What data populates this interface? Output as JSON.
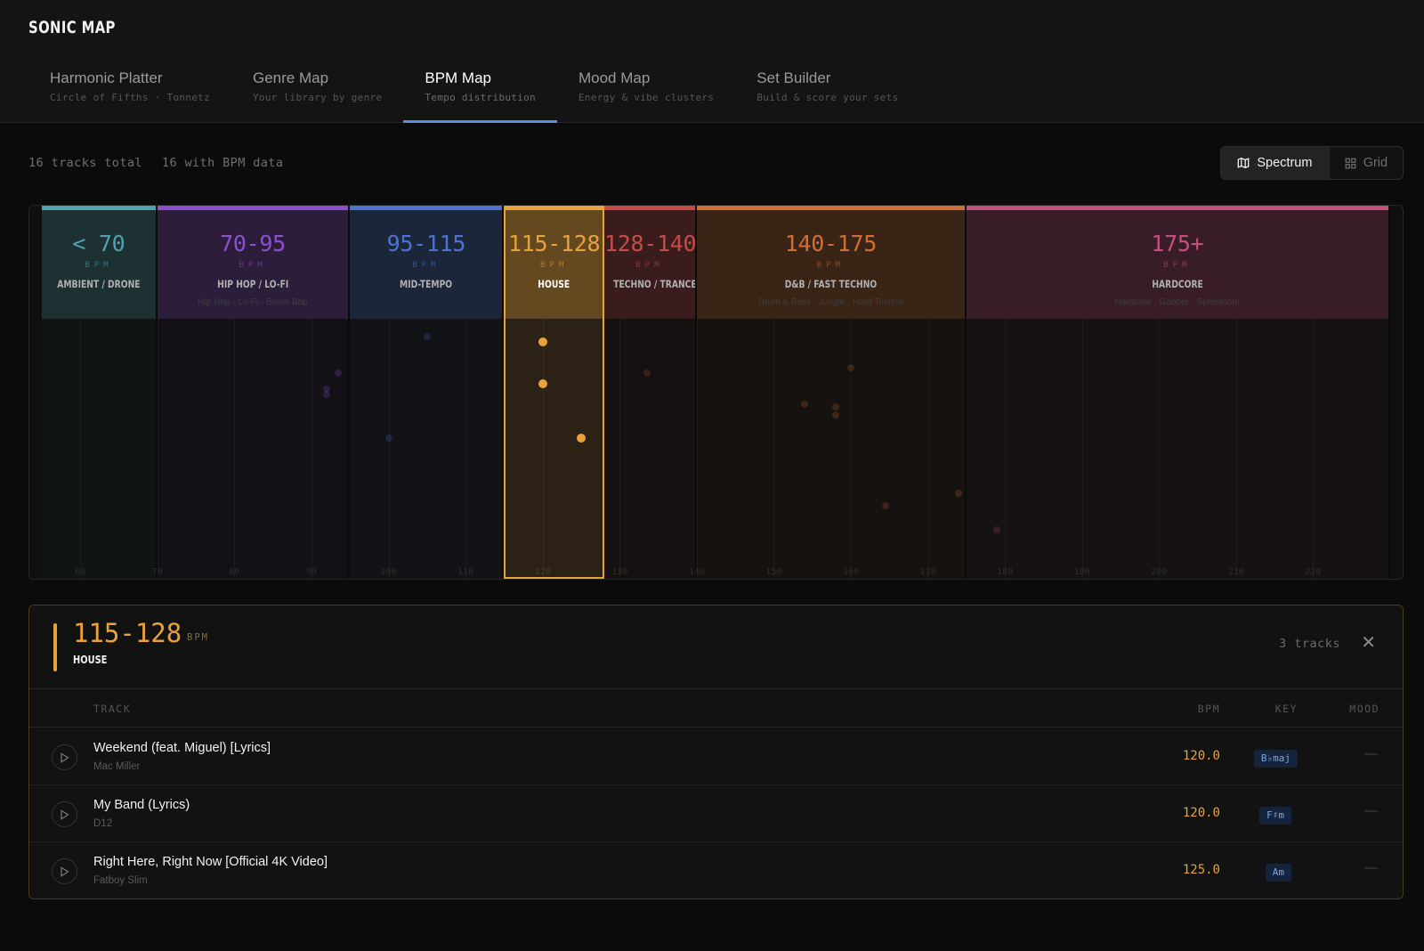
{
  "app": {
    "title": "SONIC MAP"
  },
  "tabs": [
    {
      "label": "Harmonic Platter",
      "sub": "Circle of Fifths · Tonnetz"
    },
    {
      "label": "Genre Map",
      "sub": "Your library by genre"
    },
    {
      "label": "BPM Map",
      "sub": "Tempo distribution",
      "active": true
    },
    {
      "label": "Mood Map",
      "sub": "Energy & vibe clusters"
    },
    {
      "label": "Set Builder",
      "sub": "Build & score your sets"
    }
  ],
  "stats": {
    "total": "16 tracks total",
    "with_bpm": "16 with BPM data"
  },
  "view_toggle": {
    "spectrum": "Spectrum",
    "grid": "Grid",
    "selected": "spectrum"
  },
  "bpm_unit": "BPM",
  "spectrum": {
    "bpm_min": 55,
    "bpm_max": 230,
    "bands": [
      {
        "range": "< 70",
        "name": "AMBIENT / DRONE",
        "genres": "",
        "color": "#4fa3b0",
        "from": 55,
        "to": 70
      },
      {
        "range": "70-95",
        "name": "HIP HOP / LO-FI",
        "genres": "Hip Hop · Lo-Fi · Boom Bap",
        "color": "#8d4fd0",
        "from": 70,
        "to": 95
      },
      {
        "range": "95-115",
        "name": "MID-TEMPO",
        "genres": "",
        "color": "#4c73d0",
        "from": 95,
        "to": 115
      },
      {
        "range": "115-128",
        "name": "HOUSE",
        "genres": "",
        "color": "#e9a23b",
        "from": 115,
        "to": 128,
        "active": true
      },
      {
        "range": "128-140",
        "name": "TECHNO / TRANCE",
        "genres": "",
        "color": "#c84b47",
        "from": 128,
        "to": 140
      },
      {
        "range": "140-175",
        "name": "D&B / FAST TECHNO",
        "genres": "Drum & Bass · Jungle · Hard Techno",
        "color": "#cf6f34",
        "from": 140,
        "to": 175
      },
      {
        "range": "175+",
        "name": "HARDCORE",
        "genres": "Hardcore · Gabber · Speedcore",
        "color": "#c4507e",
        "from": 175,
        "to": 230
      }
    ],
    "ticks": [
      60,
      70,
      80,
      90,
      100,
      110,
      120,
      130,
      140,
      150,
      160,
      170,
      180,
      190,
      200,
      210,
      220
    ],
    "points": [
      {
        "bpm": 120.0,
        "level": 0.91,
        "band": 3
      },
      {
        "bpm": 120.0,
        "level": 0.75,
        "band": 3
      },
      {
        "bpm": 125.0,
        "level": 0.54,
        "band": 3
      },
      {
        "bpm": 93.5,
        "level": 0.79,
        "band": 1
      },
      {
        "bpm": 92.0,
        "level": 0.73,
        "band": 1
      },
      {
        "bpm": 92.0,
        "level": 0.71,
        "band": 1
      },
      {
        "bpm": 105.0,
        "level": 0.93,
        "band": 2
      },
      {
        "bpm": 100.0,
        "level": 0.54,
        "band": 2
      },
      {
        "bpm": 133.5,
        "level": 0.79,
        "band": 4
      },
      {
        "bpm": 160.0,
        "level": 0.81,
        "band": 5
      },
      {
        "bpm": 154.0,
        "level": 0.67,
        "band": 5
      },
      {
        "bpm": 158.0,
        "level": 0.66,
        "band": 5
      },
      {
        "bpm": 158.0,
        "level": 0.63,
        "band": 5
      },
      {
        "bpm": 164.5,
        "level": 0.28,
        "band": 5
      },
      {
        "bpm": 174.0,
        "level": 0.33,
        "band": 5
      },
      {
        "bpm": 179.0,
        "level": 0.19,
        "band": 6
      }
    ]
  },
  "detail": {
    "range": "115-128",
    "bpm_label": "BPM",
    "name": "HOUSE",
    "count": "3 tracks",
    "close": "✕",
    "columns": {
      "track": "TRACK",
      "bpm": "BPM",
      "key": "KEY",
      "mood": "MOOD"
    },
    "tracks": [
      {
        "title": "Weekend (feat. Miguel) [Lyrics]",
        "artist": "Mac Miller",
        "bpm": "120.0",
        "key": "B♭maj",
        "mood": "—"
      },
      {
        "title": "My Band (Lyrics)",
        "artist": "D12",
        "bpm": "120.0",
        "key": "F♯m",
        "mood": "—"
      },
      {
        "title": "Right Here, Right Now [Official 4K Video]",
        "artist": "Fatboy Slim",
        "bpm": "125.0",
        "key": "Am",
        "mood": "—"
      }
    ]
  }
}
